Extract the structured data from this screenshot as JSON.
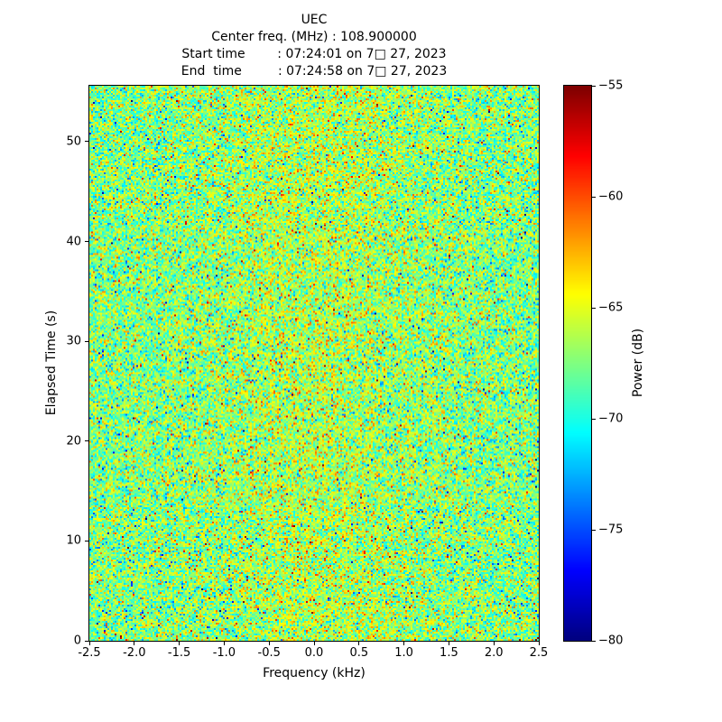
{
  "chart_data": {
    "type": "heatmap",
    "title": "UEC",
    "header_lines": [
      "Center freq. (MHz) : 108.900000",
      "Start time        : 07:24:01 on 7□ 27, 2023",
      "End  time         : 07:24:58 on 7□ 27, 2023"
    ],
    "xlabel": "Frequency (kHz)",
    "ylabel": "Elapsed Time (s)",
    "xlim": [
      -2.5,
      2.5
    ],
    "ylim": [
      0,
      55.6
    ],
    "x_tick_values": [
      -2.5,
      -2.0,
      -1.5,
      -1.0,
      -0.5,
      0.0,
      0.5,
      1.0,
      1.5,
      2.0,
      2.5
    ],
    "x_tick_labels": [
      "-2.5",
      "-2.0",
      "-1.5",
      "-1.0",
      "-0.5",
      "0.0",
      "0.5",
      "1.0",
      "1.5",
      "2.0",
      "2.5"
    ],
    "y_tick_values": [
      0,
      10,
      20,
      30,
      40,
      50
    ],
    "y_tick_labels": [
      "0",
      "10",
      "20",
      "30",
      "40",
      "50"
    ],
    "grid": false,
    "colormap": "jet",
    "colorbar": {
      "label": "Power (dB)",
      "min": -80,
      "max": -55,
      "tick_values": [
        -55,
        -60,
        -65,
        -70,
        -75,
        -80
      ],
      "tick_labels": [
        "−55",
        "−60",
        "−65",
        "−70",
        "−75",
        "−80"
      ]
    },
    "noise_model": {
      "description": "broadband noise floor spectrogram; random speckle around the mean with warmer band near 0 kHz",
      "mean_db": -67.5,
      "std_db": 2.6,
      "center_boost_db": 1.2,
      "center_width_khz": 1.2,
      "tail_prob": 0.05,
      "tail_scale": 2.0,
      "seed": 20230727,
      "grid_cols": 249,
      "grid_rows": 308
    }
  }
}
